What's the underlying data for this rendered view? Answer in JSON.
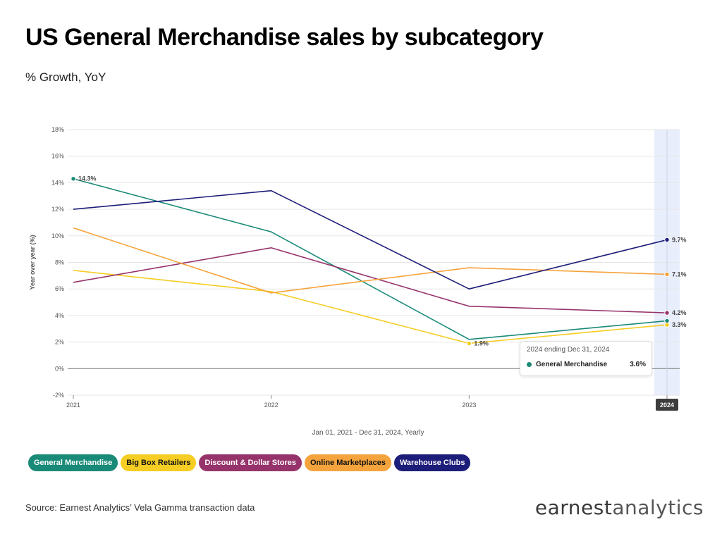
{
  "header": {
    "title": "US General Merchandise sales by subcategory",
    "subtitle": "% Growth, YoY"
  },
  "period_label": "Jan 01, 2021 - Dec 31, 2024, Yearly",
  "source": "Source: Earnest Analytics’ Vela Gamma transaction data",
  "logo": {
    "part1": "earnest",
    "part2": "analytics"
  },
  "tooltip": {
    "header": "2024 ending Dec 31, 2024",
    "series": "General Merchandise",
    "value": "3.6%",
    "color": "#1a8a78"
  },
  "chart_data": {
    "type": "line",
    "title": "US General Merchandise sales by subcategory",
    "subtitle": "% Growth, YoY",
    "xlabel": "",
    "ylabel": "Year over year (%)",
    "x": [
      "2021",
      "2022",
      "2023",
      "2024"
    ],
    "highlight_x": "2024",
    "ylim": [
      -2,
      18
    ],
    "yticks": [
      "-2%",
      "0%",
      "2%",
      "4%",
      "6%",
      "8%",
      "10%",
      "12%",
      "14%",
      "16%",
      "18%"
    ],
    "grid": true,
    "legend": "bottom",
    "series": [
      {
        "name": "General Merchandise",
        "color": "#1a8a78",
        "values": [
          14.3,
          10.3,
          2.2,
          3.6
        ],
        "labels": [
          "14.3%",
          "",
          "",
          ""
        ]
      },
      {
        "name": "Big Box Retailers",
        "color": "#f5cd23",
        "values": [
          7.4,
          5.8,
          1.9,
          3.3
        ],
        "labels": [
          "",
          "",
          "1.9%",
          "3.3%"
        ]
      },
      {
        "name": "Discount & Dollar Stores",
        "color": "#96336b",
        "values": [
          6.5,
          9.1,
          4.7,
          4.2
        ],
        "labels": [
          "",
          "",
          "",
          "4.2%"
        ]
      },
      {
        "name": "Online Marketplaces",
        "color": "#f5a33c",
        "values": [
          10.6,
          5.7,
          7.6,
          7.1
        ],
        "labels": [
          "",
          "",
          "",
          "7.1%"
        ]
      },
      {
        "name": "Warehouse Clubs",
        "color": "#1d1d7a",
        "values": [
          12.0,
          13.4,
          6.0,
          9.7
        ],
        "labels": [
          "",
          "",
          "",
          "9.7%"
        ]
      }
    ]
  },
  "legend_items": [
    {
      "label": "General Merchandise",
      "bg": "#1a8a78",
      "fg": "#ffffff"
    },
    {
      "label": "Big Box Retailers",
      "bg": "#f5cd23",
      "fg": "#111111"
    },
    {
      "label": "Discount & Dollar Stores",
      "bg": "#96336b",
      "fg": "#ffffff"
    },
    {
      "label": "Online Marketplaces",
      "bg": "#f5a33c",
      "fg": "#111111"
    },
    {
      "label": "Warehouse Clubs",
      "bg": "#1d1d7a",
      "fg": "#ffffff"
    }
  ]
}
